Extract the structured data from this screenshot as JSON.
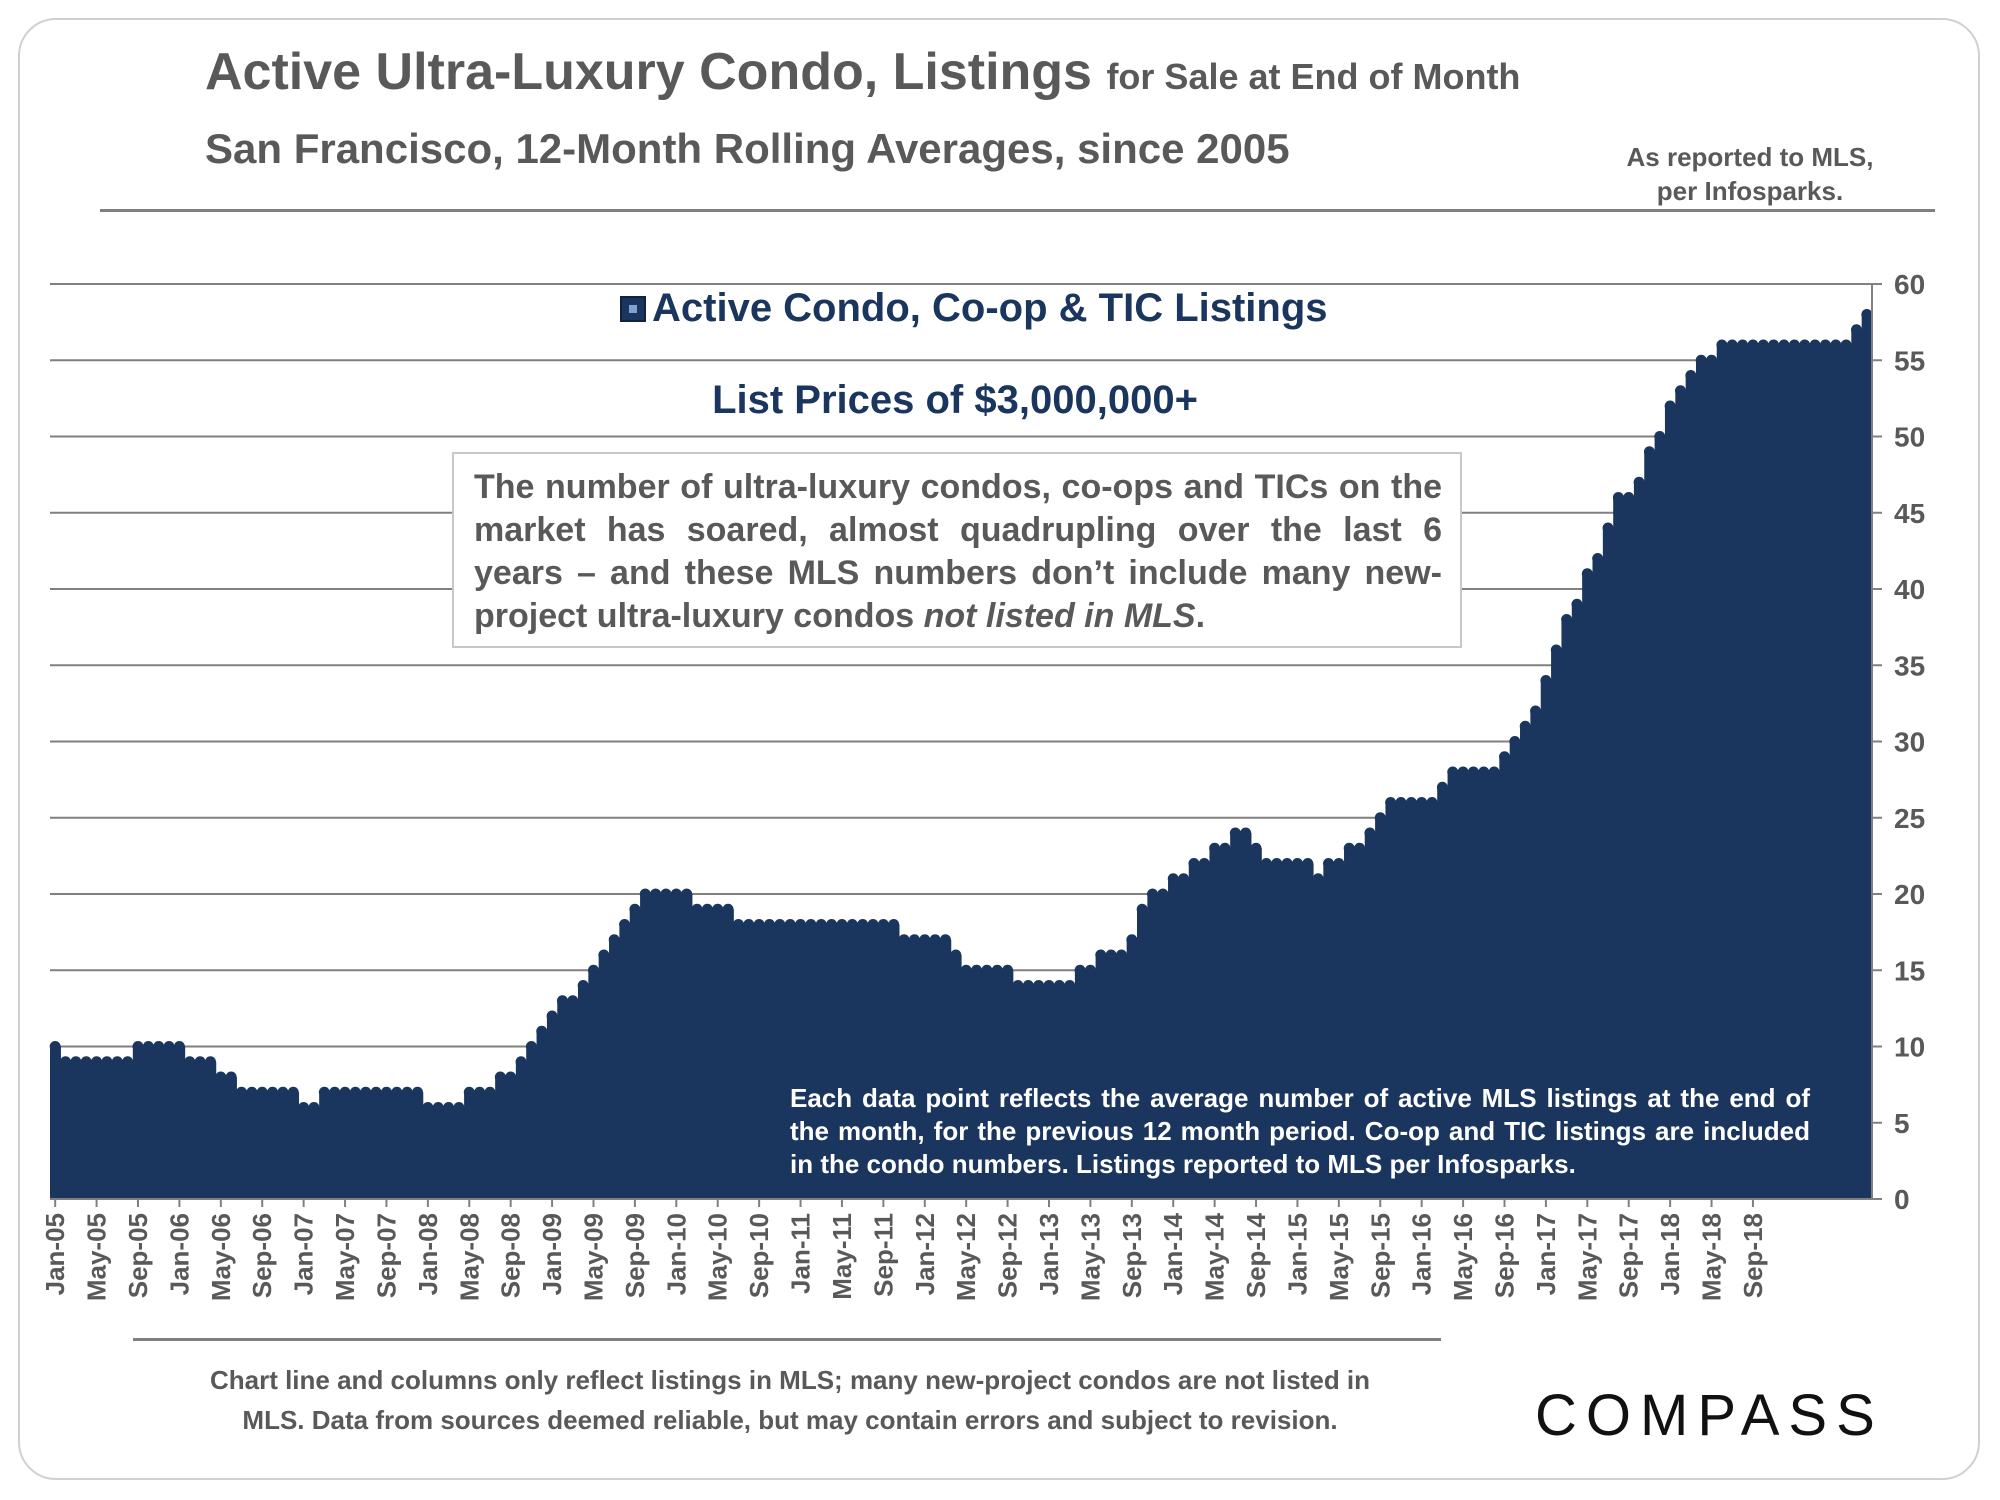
{
  "header": {
    "title_main": "Active Ultra-Luxury Condo, Listings",
    "title_suffix": "for Sale at End of Month",
    "subtitle": "San Francisco, 12-Month Rolling Averages, since 2005",
    "source_line1": "As reported to MLS,",
    "source_line2": "per Infosparks."
  },
  "legend": {
    "label": "Active Condo, Co-op & TIC Listings"
  },
  "chart_subtitle": "List Prices of $3,000,000+",
  "callout": {
    "text": "The number of ultra-luxury condos, co-ops and TICs on the market has soared, almost quadrupling over the last 6 years – and these MLS numbers don’t include many new-project ultra-luxury condos ",
    "italic": "not listed in MLS",
    "end": "."
  },
  "in_chart_note": "Each data point reflects the average number of active MLS listings at the end of the month, for the previous 12 month period. Co-op and TIC listings are included in the condo numbers. Listings reported to MLS per Infosparks.",
  "disclaimer": {
    "line1": "Chart line and columns only reflect listings in MLS; many new-project condos are not listed in",
    "line2": "MLS. Data from sources deemed reliable, but may contain errors and subject to revision."
  },
  "logo": {
    "text": "COMPASS"
  },
  "colors": {
    "bar": "#1a355e",
    "grid": "#808080",
    "text": "#595959"
  },
  "chart_data": {
    "type": "area",
    "series_name": "Active Condo, Co-op & TIC Listings",
    "x_start": "Jan-05",
    "x_end": "Nov-18",
    "tick_labels": [
      "Jan-05",
      "May-05",
      "Sep-05",
      "Jan-06",
      "May-06",
      "Sep-06",
      "Jan-07",
      "May-07",
      "Sep-07",
      "Jan-08",
      "May-08",
      "Sep-08",
      "Jan-09",
      "May-09",
      "Sep-09",
      "Jan-10",
      "May-10",
      "Sep-10",
      "Jan-11",
      "May-11",
      "Sep-11",
      "Jan-12",
      "May-12",
      "Sep-12",
      "Jan-13",
      "May-13",
      "Sep-13",
      "Jan-14",
      "May-14",
      "Sep-14",
      "Jan-15",
      "May-15",
      "Sep-15",
      "Jan-16",
      "May-16",
      "Sep-16",
      "Jan-17",
      "May-17",
      "Sep-17",
      "Jan-18",
      "May-18",
      "Sep-18"
    ],
    "values": [
      10,
      9,
      9,
      9,
      9,
      9,
      9,
      9,
      10,
      10,
      10,
      10,
      10,
      9,
      9,
      9,
      8,
      8,
      7,
      7,
      7,
      7,
      7,
      7,
      6,
      6,
      7,
      7,
      7,
      7,
      7,
      7,
      7,
      7,
      7,
      7,
      6,
      6,
      6,
      6,
      7,
      7,
      7,
      8,
      8,
      9,
      10,
      11,
      12,
      13,
      13,
      14,
      15,
      16,
      17,
      18,
      19,
      20,
      20,
      20,
      20,
      20,
      19,
      19,
      19,
      19,
      18,
      18,
      18,
      18,
      18,
      18,
      18,
      18,
      18,
      18,
      18,
      18,
      18,
      18,
      18,
      18,
      17,
      17,
      17,
      17,
      17,
      16,
      15,
      15,
      15,
      15,
      15,
      14,
      14,
      14,
      14,
      14,
      14,
      15,
      15,
      16,
      16,
      16,
      17,
      19,
      20,
      20,
      21,
      21,
      22,
      22,
      23,
      23,
      24,
      24,
      23,
      22,
      22,
      22,
      22,
      22,
      21,
      22,
      22,
      23,
      23,
      24,
      25,
      26,
      26,
      26,
      26,
      26,
      27,
      28,
      28,
      28,
      28,
      28,
      29,
      30,
      31,
      32,
      34,
      36,
      38,
      39,
      41,
      42,
      44,
      46,
      46,
      47,
      49,
      50,
      52,
      53,
      54,
      55,
      55,
      56,
      56,
      56,
      56,
      56,
      56,
      56,
      56,
      56,
      56,
      56,
      56,
      56,
      57,
      58
    ],
    "ylim": [
      0,
      60
    ],
    "y_ticks": [
      0,
      5,
      10,
      15,
      20,
      25,
      30,
      35,
      40,
      45,
      50,
      55,
      60
    ],
    "y_axis_side": "right",
    "grid": true
  }
}
